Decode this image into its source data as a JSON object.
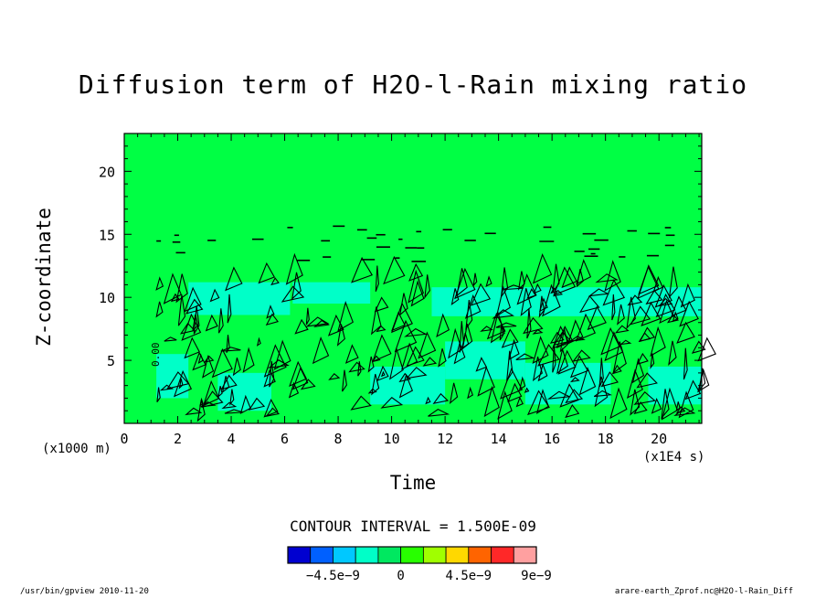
{
  "chart_data": {
    "type": "heatmap",
    "title": "Diffusion term of H2O-l-Rain mixing ratio",
    "xlabel": "Time",
    "ylabel": "Z-coordinate",
    "x_units": "(x1E4 s)",
    "y_units": "(x1000 m)",
    "xlim": [
      0,
      21.6
    ],
    "ylim": [
      0,
      23
    ],
    "x_ticks": [
      0,
      2,
      4,
      6,
      8,
      10,
      12,
      14,
      16,
      18,
      20
    ],
    "y_ticks": [
      5,
      10,
      15,
      20
    ],
    "contour_interval_text": "CONTOUR INTERVAL = 1.500E-09",
    "contour_interval": 1.5e-09,
    "colorbar": {
      "colors": [
        "#0000d0",
        "#0060ff",
        "#00c8ff",
        "#00ffc8",
        "#00e860",
        "#28ff00",
        "#a0ff00",
        "#ffd800",
        "#ff6400",
        "#ff2828",
        "#ffa0a0"
      ],
      "tick_labels": [
        "−4.5e−9",
        "0",
        "4.5e−9",
        "9e−9"
      ],
      "tick_values": [
        -4.5e-09,
        0,
        4.5e-09,
        9e-09
      ],
      "range": [
        -7.5e-09,
        9e-09
      ]
    },
    "background_color": "#00ff44",
    "negative_region_color": "#00ffc8",
    "negative_regions": [
      {
        "x_start": 1.2,
        "x_end": 2.4,
        "z_start": 2.0,
        "z_end": 5.5
      },
      {
        "x_start": 2.4,
        "x_end": 6.2,
        "z_start": 8.6,
        "z_end": 11.2
      },
      {
        "x_start": 6.3,
        "x_end": 9.2,
        "z_start": 9.5,
        "z_end": 11.2
      },
      {
        "x_start": 3.5,
        "x_end": 5.5,
        "z_start": 1.0,
        "z_end": 4.0
      },
      {
        "x_start": 9.2,
        "x_end": 12.0,
        "z_start": 1.5,
        "z_end": 4.5
      },
      {
        "x_start": 12.0,
        "x_end": 15.0,
        "z_start": 3.5,
        "z_end": 6.5
      },
      {
        "x_start": 15.0,
        "x_end": 18.2,
        "z_start": 1.5,
        "z_end": 4.8
      },
      {
        "x_start": 19.6,
        "x_end": 21.6,
        "z_start": 1.5,
        "z_end": 4.5
      },
      {
        "x_start": 11.5,
        "x_end": 21.6,
        "z_start": 8.5,
        "z_end": 10.8
      }
    ],
    "contour_label": "0.00"
  },
  "footer": {
    "left": "/usr/bin/gpview  2010-11-20",
    "right": "arare-earth_Zprof.nc@H2O-l-Rain_Diff"
  }
}
